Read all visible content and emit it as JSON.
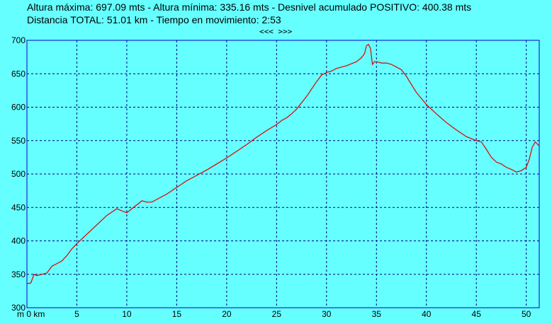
{
  "header": {
    "line1": "Altura máxima: 697.09 mts - Altura mínima: 335.16 mts - Desnivel acumulado POSITIVO: 400.38 mts",
    "line2": "Distancia TOTAL: 51.01 km - Tiempo en movimiento: 2:53"
  },
  "nav": {
    "prev": "<<<",
    "next": ">>>"
  },
  "colors": {
    "background": "#66ffff",
    "frame": "#0000cc",
    "grid": "#000080",
    "line": "#dd0000"
  },
  "chart_data": {
    "type": "line",
    "title": "",
    "xlabel": "",
    "ylabel": "",
    "x_unit_label": "m 0 km",
    "xlim": [
      0,
      51.3
    ],
    "ylim": [
      300,
      700
    ],
    "xticks": [
      5,
      10,
      15,
      20,
      25,
      30,
      35,
      40,
      45,
      50
    ],
    "yticks": [
      300,
      350,
      400,
      450,
      500,
      550,
      600,
      650,
      700
    ],
    "grid": true,
    "series": [
      {
        "x": [
          0,
          0.4,
          0.7,
          1.0,
          1.5,
          2.0,
          2.5,
          3.0,
          3.5,
          4.0,
          4.5,
          5.0,
          6.0,
          7.0,
          8.0,
          9.0,
          9.5,
          10.0,
          10.5,
          11.0,
          11.2,
          11.5,
          12.0,
          12.5,
          13.0,
          13.5,
          14.0,
          14.5,
          15.0,
          16.0,
          17.0,
          18.0,
          19.0,
          20.0,
          21.0,
          22.0,
          23.0,
          24.0,
          25.0,
          25.5,
          26.0,
          26.5,
          27.0,
          28.0,
          29.0,
          29.5,
          30.0,
          30.5,
          31.0,
          32.0,
          32.5,
          33.0,
          33.5,
          33.8,
          34.0,
          34.2,
          34.4,
          34.6,
          34.8,
          35.0,
          35.5,
          36.0,
          36.5,
          37.0,
          37.5,
          38.0,
          38.5,
          39.0,
          40.0,
          41.0,
          42.0,
          43.0,
          44.0,
          45.0,
          45.5,
          46.0,
          46.5,
          47.0,
          47.5,
          48.0,
          48.5,
          49.0,
          49.5,
          50.0,
          50.3,
          50.6,
          50.9,
          51.1,
          51.3
        ],
        "y": [
          336,
          337,
          350,
          348,
          350,
          352,
          362,
          366,
          370,
          378,
          388,
          396,
          410,
          424,
          438,
          448,
          445,
          442,
          448,
          454,
          456,
          460,
          458,
          458,
          462,
          466,
          470,
          475,
          480,
          490,
          498,
          506,
          515,
          524,
          534,
          544,
          555,
          565,
          574,
          580,
          584,
          590,
          597,
          616,
          638,
          648,
          652,
          654,
          658,
          662,
          665,
          668,
          674,
          680,
          692,
          694,
          688,
          664,
          668,
          668,
          666,
          666,
          664,
          660,
          656,
          646,
          634,
          622,
          604,
          590,
          577,
          566,
          556,
          550,
          548,
          537,
          525,
          518,
          515,
          510,
          507,
          503,
          505,
          510,
          522,
          540,
          548,
          545,
          542
        ]
      }
    ]
  }
}
